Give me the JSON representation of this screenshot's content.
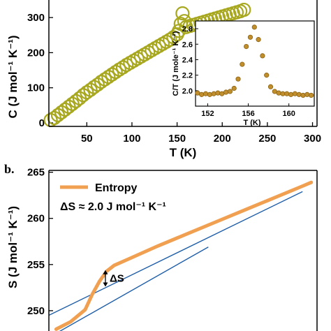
{
  "colors": {
    "heat_capacity_marker": "#a8a820",
    "inset_marker": "#c08e2c",
    "inset_marker_edge": "#8a6212",
    "entropy_line": "#f0a050",
    "tangent_line": "#1f5ea8",
    "axis": "#000000"
  },
  "chart_data": [
    {
      "id": "panel-a",
      "type": "scatter",
      "xlabel": "T (K)",
      "ylabel": "C (J mol⁻¹ K⁻¹)",
      "xlim": [
        8,
        305
      ],
      "ylim": [
        -10,
        350
      ],
      "xticks": [
        50,
        100,
        150,
        200,
        250,
        300
      ],
      "yticks": [
        0,
        100,
        200,
        300
      ],
      "series": [
        {
          "marker": "open-circle",
          "x": [
            10,
            14,
            18,
            22,
            26,
            30,
            34,
            38,
            42,
            46,
            50,
            54,
            58,
            62,
            66,
            70,
            74,
            78,
            82,
            86,
            90,
            94,
            98,
            102,
            106,
            110,
            114,
            118,
            122,
            126,
            130,
            134,
            138,
            142,
            146,
            150,
            152,
            154,
            156,
            158,
            160,
            164,
            168,
            172,
            176,
            180,
            184,
            188,
            192,
            196,
            200,
            204,
            208,
            212,
            216,
            220,
            224
          ],
          "y": [
            8,
            14,
            22,
            30,
            38,
            46,
            54,
            62,
            70,
            79,
            87,
            94,
            102,
            109,
            117,
            124,
            131,
            138,
            145,
            152,
            158,
            165,
            171,
            177,
            183,
            189,
            195,
            201,
            207,
            213,
            219,
            225,
            231,
            237,
            244,
            252,
            262,
            282,
            312,
            290,
            273,
            276,
            279,
            282,
            285,
            288,
            291,
            294,
            297,
            300,
            303,
            306,
            309,
            312,
            315,
            318,
            322
          ]
        }
      ],
      "inset": {
        "type": "scatter",
        "xlabel": "T (K)",
        "ylabel": "C/T (J mole⁻¹ K⁻²)",
        "xlim": [
          150.8,
          162.5
        ],
        "ylim": [
          1.8,
          2.9
        ],
        "xticks": [
          152,
          156,
          160
        ],
        "yticks": [
          2.0,
          2.2,
          2.4,
          2.6,
          2.8
        ],
        "x": [
          151.0,
          151.4,
          151.8,
          152.2,
          152.6,
          153.0,
          153.4,
          153.8,
          154.2,
          154.6,
          155.0,
          155.4,
          155.8,
          156.2,
          156.6,
          157.0,
          157.4,
          157.8,
          158.2,
          158.6,
          159.0,
          159.4,
          159.8,
          160.2,
          160.6,
          161.0,
          161.4,
          161.8,
          162.2
        ],
        "y": [
          1.97,
          1.95,
          1.96,
          1.95,
          1.96,
          1.97,
          1.96,
          1.98,
          1.99,
          2.03,
          2.15,
          2.34,
          2.57,
          2.69,
          2.82,
          2.66,
          2.45,
          2.2,
          2.05,
          1.99,
          1.97,
          1.96,
          1.96,
          1.95,
          1.96,
          1.95,
          1.94,
          1.95,
          1.94
        ]
      }
    },
    {
      "id": "panel-b",
      "type": "line",
      "panel_label": "b.",
      "ylabel": "S (J mol⁻¹ K⁻¹)",
      "xlim": [
        125,
        310
      ],
      "ylim": [
        247.8,
        265.2
      ],
      "yticks": [
        250,
        255,
        260,
        265
      ],
      "legend_position": "top-left",
      "series": [
        {
          "name": "Entropy",
          "x": [
            130,
            140,
            150,
            155,
            160,
            165,
            170,
            180,
            200,
            220,
            240,
            260,
            280,
            300,
            306
          ],
          "y": [
            248.0,
            248.8,
            250.1,
            251.8,
            253.2,
            254.3,
            254.9,
            255.6,
            257.0,
            258.3,
            259.6,
            260.9,
            262.2,
            263.5,
            263.9
          ]
        }
      ],
      "reference_lines": [
        {
          "x": [
            125,
            300
          ],
          "y": [
            249.5,
            262.9
          ]
        },
        {
          "x": [
            125,
            235
          ],
          "y": [
            247.1,
            256.9
          ]
        }
      ],
      "annotation": {
        "label": "ΔS",
        "x": 164,
        "y_top": 254.4,
        "y_bottom": 252.6,
        "text": "ΔS ≈ 2.0 J mol⁻¹ K⁻¹"
      }
    }
  ]
}
